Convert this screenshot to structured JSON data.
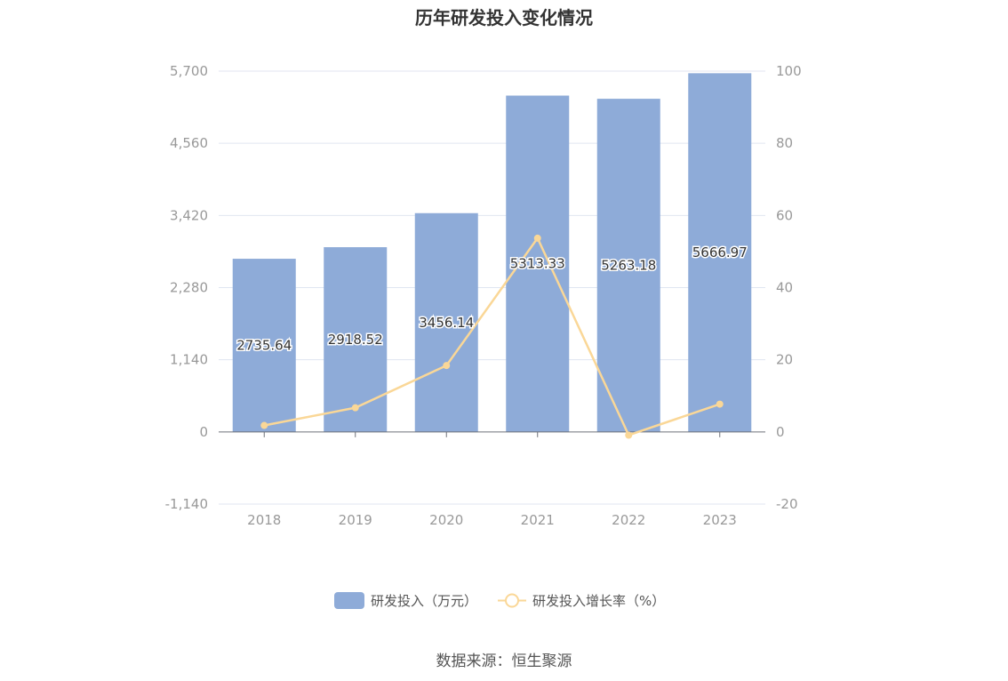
{
  "chart_data": {
    "type": "bar",
    "title": "历年研发投入变化情况",
    "categories": [
      "2018",
      "2019",
      "2020",
      "2021",
      "2022",
      "2023"
    ],
    "series": [
      {
        "name": "研发投入（万元）",
        "type": "bar",
        "axis": "left",
        "values": [
          2735.64,
          2918.52,
          3456.14,
          5313.33,
          5263.18,
          5666.97
        ],
        "labels": [
          "2735.64",
          "2918.52",
          "3456.14",
          "5313.33",
          "5263.18",
          "5666.97"
        ],
        "color": "#8eabd8"
      },
      {
        "name": "研发投入增长率（%）",
        "type": "line",
        "axis": "right",
        "values": [
          1.8,
          6.7,
          18.4,
          53.7,
          -0.9,
          7.7
        ],
        "color": "#fad797"
      }
    ],
    "y_left": {
      "ylim": [
        -1140,
        5700
      ],
      "ticks": [
        -1140,
        0,
        1140,
        2280,
        3420,
        4560,
        5700
      ],
      "tick_labels": [
        "-1,140",
        "0",
        "1,140",
        "2,280",
        "3,420",
        "4,560",
        "5,700"
      ]
    },
    "y_right": {
      "ylim": [
        -20,
        100
      ],
      "ticks": [
        -20,
        0,
        20,
        40,
        60,
        80,
        100
      ],
      "tick_labels": [
        "-20",
        "0",
        "20",
        "40",
        "60",
        "80",
        "100"
      ]
    },
    "grid": true,
    "legend": "bottom-center"
  },
  "source_text": "数据来源：恒生聚源"
}
